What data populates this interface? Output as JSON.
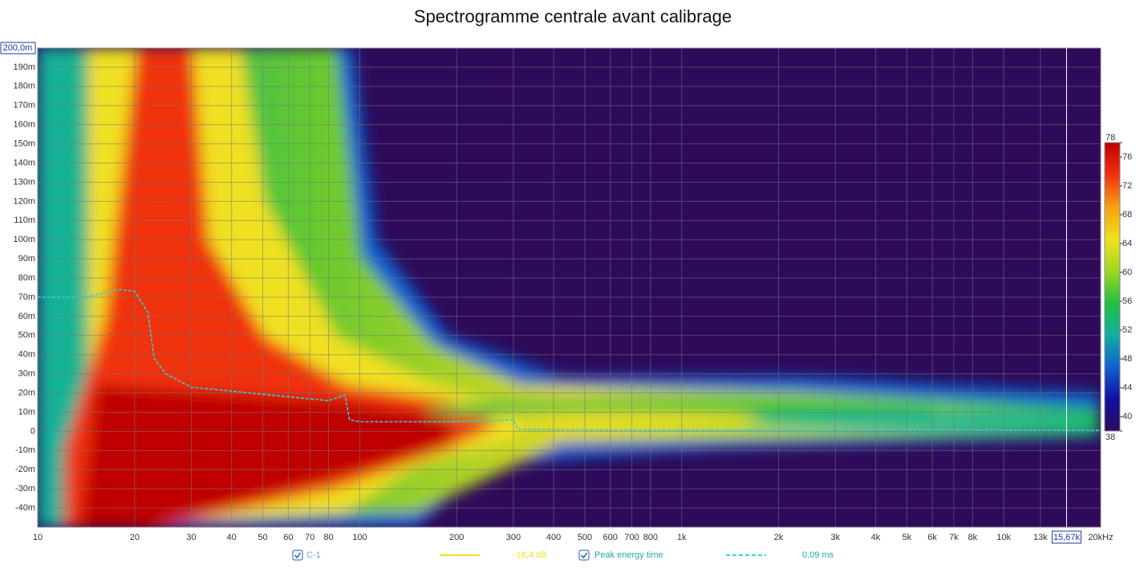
{
  "chart_data": {
    "type": "spectrogram",
    "title": "Spectrogramme centrale avant calibrage",
    "x_log": true,
    "grid": true,
    "xlim": [
      10,
      20000
    ],
    "ylim": [
      -50,
      200
    ],
    "xticks": [
      10,
      20,
      30,
      40,
      50,
      60,
      70,
      80,
      100,
      200,
      300,
      400,
      500,
      600,
      700,
      800,
      {
        "value": 1000,
        "label": "1k"
      },
      {
        "value": 2000,
        "label": "2k"
      },
      {
        "value": 3000,
        "label": "3k"
      },
      {
        "value": 4000,
        "label": "4k"
      },
      {
        "value": 5000,
        "label": "5k"
      },
      {
        "value": 6000,
        "label": "6k"
      },
      {
        "value": 7000,
        "label": "7k"
      },
      {
        "value": 8000,
        "label": "8k"
      },
      {
        "value": 10000,
        "label": "10k"
      },
      {
        "value": 13000,
        "label": "13k"
      },
      {
        "value": 20000,
        "label": "20kHz"
      }
    ],
    "yticks": [
      {
        "value": 190,
        "label": "190m"
      },
      {
        "value": 180,
        "label": "180m"
      },
      {
        "value": 170,
        "label": "170m"
      },
      {
        "value": 160,
        "label": "160m"
      },
      {
        "value": 150,
        "label": "150m"
      },
      {
        "value": 140,
        "label": "140m"
      },
      {
        "value": 130,
        "label": "130m"
      },
      {
        "value": 120,
        "label": "120m"
      },
      {
        "value": 110,
        "label": "110m"
      },
      {
        "value": 100,
        "label": "100m"
      },
      {
        "value": 90,
        "label": "90m"
      },
      {
        "value": 80,
        "label": "80m"
      },
      {
        "value": 70,
        "label": "70m"
      },
      {
        "value": 60,
        "label": "60m"
      },
      {
        "value": 50,
        "label": "50m"
      },
      {
        "value": 40,
        "label": "40m"
      },
      {
        "value": 30,
        "label": "30m"
      },
      {
        "value": 20,
        "label": "20m"
      },
      {
        "value": 10,
        "label": "10m"
      },
      0,
      {
        "value": -10,
        "label": "-10m"
      },
      {
        "value": -20,
        "label": "-20m"
      },
      {
        "value": -30,
        "label": "-30m"
      },
      {
        "value": -40,
        "label": "-40m"
      }
    ],
    "zlim": [
      38,
      78
    ],
    "zticks": [
      38,
      40,
      44,
      48,
      52,
      56,
      60,
      64,
      68,
      72,
      76,
      78
    ],
    "colormap": [
      "#2e0a5a",
      "#1010a0",
      "#1060d0",
      "#10b0a0",
      "#20c040",
      "#a0d820",
      "#f0e020",
      "#f8a010",
      "#f03010",
      "#c00000"
    ],
    "cursor": {
      "x": {
        "value": 15670,
        "label": "15,67k"
      },
      "y": {
        "value": 200,
        "label": "200,0m"
      }
    },
    "spectrum_legend": {
      "name": "C-1",
      "color": "#f0e020",
      "legend_value": "-16,4 dB"
    },
    "series": [
      {
        "name": "Peak energy time",
        "color": "#30d0d8",
        "dashed": true,
        "legend_value": "0,09 ms",
        "x": [
          10,
          14,
          18,
          20,
          22,
          23,
          25,
          30,
          40,
          60,
          80,
          90,
          93,
          100,
          200,
          300,
          310,
          1000,
          3000,
          20000
        ],
        "values": [
          70,
          70,
          74,
          73,
          62,
          38,
          30,
          23,
          21,
          18,
          16,
          19,
          6,
          5,
          5,
          6,
          1,
          0.5,
          1,
          0.5
        ]
      }
    ]
  }
}
